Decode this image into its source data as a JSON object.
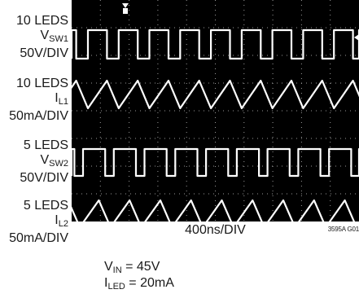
{
  "chart_data": {
    "type": "line",
    "xlabel": "400ns/DIV",
    "code": "3595A G01",
    "channels": [
      {
        "id": "vsw1",
        "line1": "10 LEDS",
        "sym": "V",
        "sub": "SW1",
        "scale": "50V/DIV",
        "shape": "square",
        "period_div": 1.07,
        "duty": 0.62
      },
      {
        "id": "il1",
        "line1": "10 LEDS",
        "sym": "I",
        "sub": "L1",
        "scale": "50mA/DIV",
        "shape": "triangle",
        "period_div": 1.07
      },
      {
        "id": "vsw2",
        "line1": "5 LEDS",
        "sym": "V",
        "sub": "SW2",
        "scale": "50V/DIV",
        "shape": "square",
        "period_div": 1.07,
        "duty": 0.72
      },
      {
        "id": "il2",
        "line1": "5 LEDS",
        "sym": "I",
        "sub": "L2",
        "scale": "50mA/DIV",
        "shape": "triangle",
        "period_div": 1.07
      }
    ],
    "conditions": [
      {
        "sym": "V",
        "sub": "IN",
        "value": " = 45V"
      },
      {
        "sym": "I",
        "sub": "LED",
        "value": " = 20mA"
      }
    ]
  }
}
